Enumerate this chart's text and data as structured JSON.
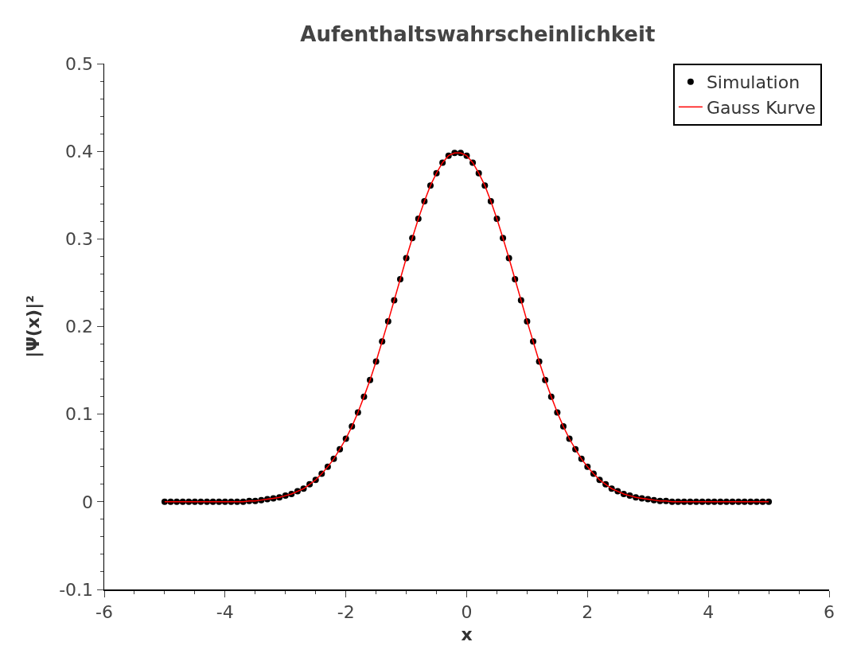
{
  "chart_data": {
    "type": "scatter",
    "title": "Aufenthaltswahrscheinlichkeit",
    "xlabel": "x",
    "ylabel": "|Ψ(x)|²",
    "xlim": [
      -6,
      6
    ],
    "xticks": [
      -6,
      -4,
      -2,
      0,
      2,
      4,
      6,
      {
        "value": -5.5,
        "label": null
      },
      {
        "value": -5,
        "label": null
      },
      {
        "value": -4.5,
        "label": null
      },
      {
        "value": -3.5,
        "label": null
      },
      {
        "value": -3,
        "label": null
      },
      {
        "value": -2.5,
        "label": null
      },
      {
        "value": -1.5,
        "label": null
      },
      {
        "value": -1,
        "label": null
      },
      {
        "value": -0.5,
        "label": null
      },
      {
        "value": 0.5,
        "label": null
      },
      {
        "value": 1,
        "label": null
      },
      {
        "value": 1.5,
        "label": null
      },
      {
        "value": 2.5,
        "label": null
      },
      {
        "value": 3,
        "label": null
      },
      {
        "value": 3.5,
        "label": null
      },
      {
        "value": 4.5,
        "label": null
      },
      {
        "value": 5,
        "label": null
      },
      {
        "value": 5.5,
        "label": null
      }
    ],
    "ylim": [
      -0.1,
      0.5
    ],
    "yticks": [
      -0.1,
      0,
      0.1,
      0.2,
      0.3,
      0.4,
      0.5,
      {
        "value": -0.08,
        "label": null
      },
      {
        "value": -0.06,
        "label": null
      },
      {
        "value": -0.04,
        "label": null
      },
      {
        "value": -0.02,
        "label": null
      },
      {
        "value": 0.02,
        "label": null
      },
      {
        "value": 0.04,
        "label": null
      },
      {
        "value": 0.06,
        "label": null
      },
      {
        "value": 0.08,
        "label": null
      },
      {
        "value": 0.12,
        "label": null
      },
      {
        "value": 0.14,
        "label": null
      },
      {
        "value": 0.16,
        "label": null
      },
      {
        "value": 0.18,
        "label": null
      },
      {
        "value": 0.22,
        "label": null
      },
      {
        "value": 0.24,
        "label": null
      },
      {
        "value": 0.26,
        "label": null
      },
      {
        "value": 0.28,
        "label": null
      },
      {
        "value": 0.32,
        "label": null
      },
      {
        "value": 0.34,
        "label": null
      },
      {
        "value": 0.36,
        "label": null
      },
      {
        "value": 0.38,
        "label": null
      },
      {
        "value": 0.42,
        "label": null
      },
      {
        "value": 0.44,
        "label": null
      },
      {
        "value": 0.46,
        "label": null
      },
      {
        "value": 0.48,
        "label": null
      }
    ],
    "grid": false,
    "legend": "top right",
    "x": [
      -5.0,
      -4.9,
      -4.8,
      -4.7,
      -4.6,
      -4.5,
      -4.4,
      -4.3,
      -4.2,
      -4.1,
      -4.0,
      -3.9,
      -3.8,
      -3.7,
      -3.6,
      -3.5,
      -3.4,
      -3.3,
      -3.2,
      -3.1,
      -3.0,
      -2.9,
      -2.8,
      -2.7,
      -2.6,
      -2.5,
      -2.4,
      -2.3,
      -2.2,
      -2.1,
      -2.0,
      -1.9,
      -1.8,
      -1.7,
      -1.6,
      -1.5,
      -1.4,
      -1.3,
      -1.2,
      -1.1,
      -1.0,
      -0.9,
      -0.8,
      -0.7,
      -0.6,
      -0.5,
      -0.4,
      -0.3,
      -0.2,
      -0.1,
      0.0,
      0.1,
      0.2,
      0.3,
      0.4,
      0.5,
      0.6,
      0.7,
      0.8,
      0.9,
      1.0,
      1.1,
      1.2,
      1.3,
      1.4,
      1.5,
      1.6,
      1.7,
      1.8,
      1.9,
      2.0,
      2.1,
      2.2,
      2.3,
      2.4,
      2.5,
      2.6,
      2.7,
      2.8,
      2.9,
      3.0,
      3.1,
      3.2,
      3.3,
      3.4,
      3.5,
      3.6,
      3.7,
      3.8,
      3.9,
      4.0,
      4.1,
      4.2,
      4.3,
      4.4,
      4.5,
      4.6,
      4.7,
      4.8,
      4.9,
      5.0
    ],
    "series": [
      {
        "name": "Simulation",
        "color": "#000000",
        "marker": "circle",
        "values": [
          0,
          0,
          0,
          0,
          0,
          0,
          0,
          0,
          0,
          0,
          0,
          0,
          0,
          0,
          0.001,
          0.001,
          0.002,
          0.003,
          0.004,
          0.005,
          0.007,
          0.009,
          0.012,
          0.015,
          0.02,
          0.025,
          0.032,
          0.04,
          0.049,
          0.06,
          0.072,
          0.086,
          0.102,
          0.12,
          0.139,
          0.16,
          0.183,
          0.206,
          0.23,
          0.254,
          0.278,
          0.301,
          0.323,
          0.343,
          0.361,
          0.375,
          0.387,
          0.395,
          0.398,
          0.398,
          0.395,
          0.387,
          0.375,
          0.361,
          0.343,
          0.323,
          0.301,
          0.278,
          0.254,
          0.23,
          0.206,
          0.183,
          0.16,
          0.139,
          0.12,
          0.102,
          0.086,
          0.072,
          0.06,
          0.049,
          0.04,
          0.032,
          0.025,
          0.02,
          0.015,
          0.012,
          0.009,
          0.007,
          0.005,
          0.004,
          0.003,
          0.002,
          0.001,
          0.001,
          0,
          0,
          0,
          0,
          0,
          0,
          0,
          0,
          0,
          0,
          0,
          0,
          0,
          0,
          0,
          0,
          0
        ]
      },
      {
        "name": "Gauss Kurve",
        "color": "#ff0000",
        "type": "line",
        "line_style": "solid",
        "values": [
          0,
          0,
          0,
          0,
          0,
          0,
          0,
          0,
          0,
          0,
          0,
          0,
          0,
          0,
          0.001,
          0.001,
          0.002,
          0.003,
          0.004,
          0.005,
          0.007,
          0.009,
          0.012,
          0.015,
          0.02,
          0.025,
          0.032,
          0.04,
          0.049,
          0.06,
          0.072,
          0.086,
          0.102,
          0.12,
          0.139,
          0.16,
          0.183,
          0.206,
          0.23,
          0.254,
          0.278,
          0.301,
          0.323,
          0.343,
          0.361,
          0.375,
          0.387,
          0.395,
          0.398,
          0.398,
          0.395,
          0.387,
          0.375,
          0.361,
          0.343,
          0.323,
          0.301,
          0.278,
          0.254,
          0.23,
          0.206,
          0.183,
          0.16,
          0.139,
          0.12,
          0.102,
          0.086,
          0.072,
          0.06,
          0.049,
          0.04,
          0.032,
          0.025,
          0.02,
          0.015,
          0.012,
          0.009,
          0.007,
          0.005,
          0.004,
          0.003,
          0.002,
          0.001,
          0.001,
          0,
          0,
          0,
          0,
          0,
          0,
          0,
          0,
          0,
          0,
          0,
          0,
          0,
          0,
          0,
          0,
          0
        ]
      }
    ]
  }
}
